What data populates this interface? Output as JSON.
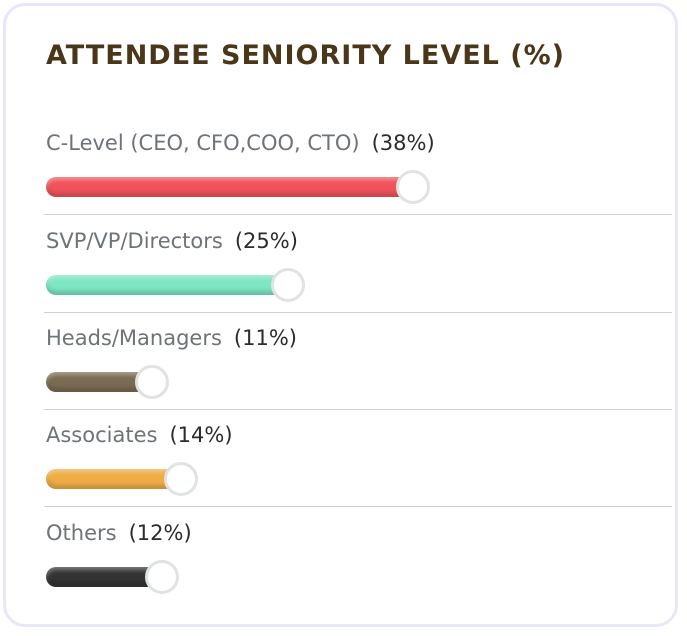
{
  "title": "ATTENDEE SENIORITY LEVEL (%)",
  "chart_data": {
    "type": "bar",
    "title": "ATTENDEE SENIORITY LEVEL (%)",
    "categories": [
      "C-Level (CEO, CFO,COO, CTO)",
      "SVP/VP/Directors",
      "Heads/Managers",
      "Associates",
      "Others"
    ],
    "values": [
      38,
      25,
      11,
      14,
      12
    ],
    "value_labels": [
      "(38%)",
      "(25%)",
      "(11%)",
      "(14%)",
      "(12%)"
    ],
    "colors": [
      "#f0535a",
      "#7de6c3",
      "#7b6b52",
      "#f0ad45",
      "#333333"
    ],
    "xlim": [
      0,
      100
    ],
    "orientation": "horizontal",
    "legend": "none"
  }
}
